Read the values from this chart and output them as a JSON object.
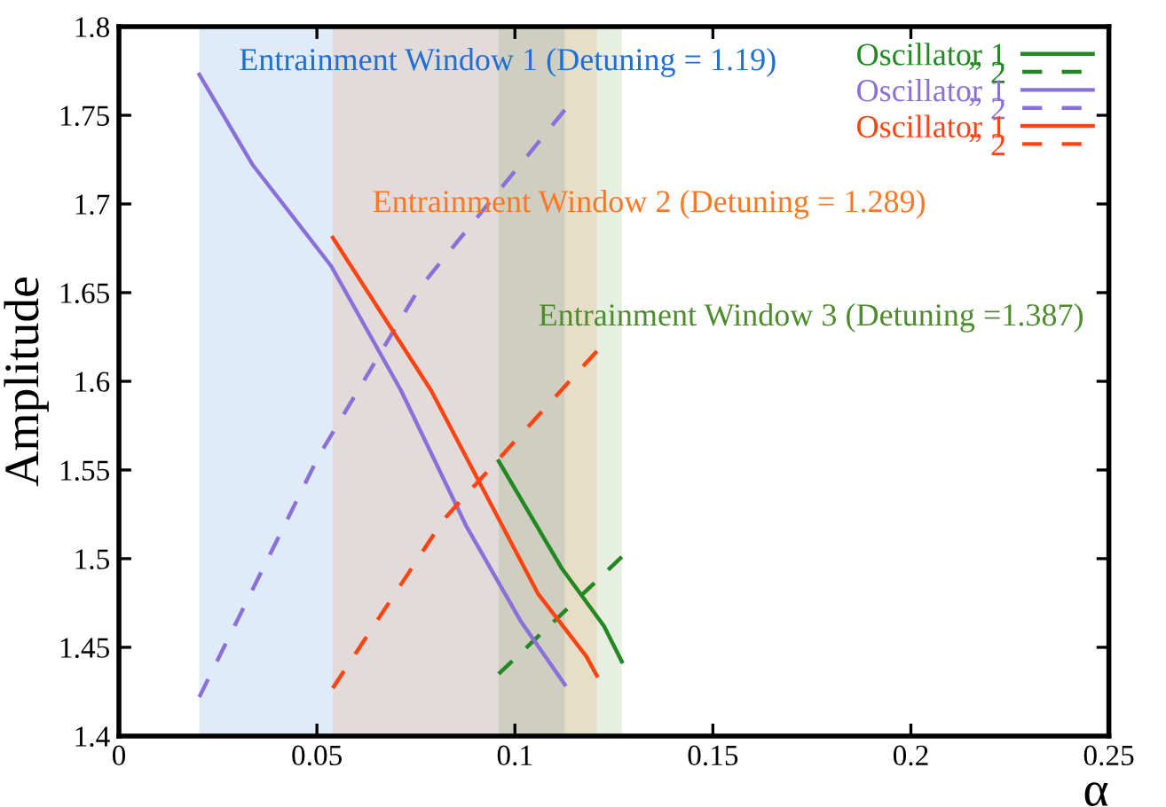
{
  "chart_data": {
    "type": "line",
    "xlabel": "α",
    "ylabel": "Amplitude",
    "xlim": [
      0,
      0.25
    ],
    "xticks": [
      0,
      0.05,
      {
        "value": 0.1,
        "label": "0.1"
      },
      0.15,
      {
        "value": 0.2,
        "label": "0.2"
      },
      0.25
    ],
    "ylim": [
      1.4,
      1.8
    ],
    "yticks": [
      {
        "value": 1.4,
        "label": "1.4"
      },
      1.45,
      {
        "value": 1.5,
        "label": "1.5"
      },
      1.55,
      {
        "value": 1.6,
        "label": "1.6"
      },
      1.65,
      {
        "value": 1.7,
        "label": "1.7"
      },
      1.75,
      {
        "value": 1.8,
        "label": "1.8"
      }
    ],
    "grid": false,
    "legend": "top right",
    "bands": [
      {
        "axis": "x",
        "from": 0.0203,
        "to": 0.1126,
        "label": "Entrainment Window 1 (Detuning = 1.19)",
        "color": "#1f6fd6"
      },
      {
        "axis": "x",
        "from": 0.054,
        "to": 0.1207,
        "label": "Entrainment Window 2 (Detuning = 1.289)",
        "color": "#ff7722"
      },
      {
        "axis": "x",
        "from": 0.0959,
        "to": 0.127,
        "label": "Entrainment Window 3 (Detuning =1.387)",
        "color": "#4c8c2c"
      }
    ],
    "series": [
      {
        "name": "Oscillator 1",
        "color": "#228822",
        "line_style": "solid",
        "x": [
          0.0959,
          0.1117,
          0.1225,
          0.127
        ],
        "values": [
          1.555,
          1.495,
          1.462,
          1.442
        ]
      },
      {
        "name": "” 2",
        "color": "#228822",
        "line_style": "dashed",
        "x": [
          0.0959,
          0.111,
          0.127
        ],
        "values": [
          1.435,
          1.467,
          1.501
        ]
      },
      {
        "name": "Oscillator 1",
        "color": "#8a70d8",
        "line_style": "solid",
        "x": [
          0.0203,
          0.0338,
          0.0536,
          0.0712,
          0.0878,
          0.1014,
          0.1126
        ],
        "values": [
          1.773,
          1.722,
          1.665,
          1.595,
          1.518,
          1.465,
          1.429
        ]
      },
      {
        "name": "” 2",
        "color": "#8a70d8",
        "line_style": "dashed",
        "x": [
          0.0203,
          0.0505,
          0.0757,
          0.1126
        ],
        "values": [
          1.422,
          1.558,
          1.652,
          1.753
        ]
      },
      {
        "name": "Oscillator 1",
        "color": "#ff4411",
        "line_style": "solid",
        "x": [
          0.054,
          0.0788,
          0.1059,
          0.118,
          0.1207
        ],
        "values": [
          1.681,
          1.595,
          1.48,
          1.445,
          1.434
        ]
      },
      {
        "name": "” 2",
        "color": "#ff4411",
        "line_style": "dashed",
        "x": [
          0.054,
          0.082,
          0.1207
        ],
        "values": [
          1.427,
          1.522,
          1.617
        ]
      }
    ]
  }
}
